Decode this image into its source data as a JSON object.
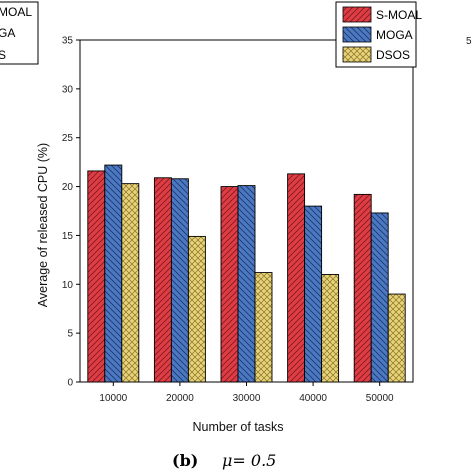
{
  "left_legend_fragments": [
    "S-MOAL",
    "GA",
    "S"
  ],
  "right_edge_fragment": "5",
  "caption": {
    "label": "(b)",
    "text": "μ= 0.5"
  },
  "chart_data": {
    "type": "bar",
    "categories": [
      "10000",
      "20000",
      "30000",
      "40000",
      "50000"
    ],
    "series": [
      {
        "name": "S-MOAL",
        "color": "#e03c44",
        "pattern": "diagonal-up",
        "values": [
          21.6,
          20.9,
          20.0,
          21.3,
          19.2
        ]
      },
      {
        "name": "MOGA",
        "color": "#4a78c2",
        "pattern": "diagonal-down",
        "values": [
          22.2,
          20.8,
          20.1,
          18.0,
          17.3
        ]
      },
      {
        "name": "DSOS",
        "color": "#e7d37a",
        "pattern": "crosshatch",
        "values": [
          20.3,
          14.9,
          11.2,
          11.0,
          9.0
        ]
      }
    ],
    "xlabel": "Number of tasks",
    "ylabel": "Average of released CPU (%)",
    "ylim": [
      0,
      35
    ],
    "yticks": [
      "0",
      "5",
      "10",
      "15",
      "20",
      "25",
      "30",
      "35"
    ],
    "legend_position": "top-right",
    "grid": false
  }
}
